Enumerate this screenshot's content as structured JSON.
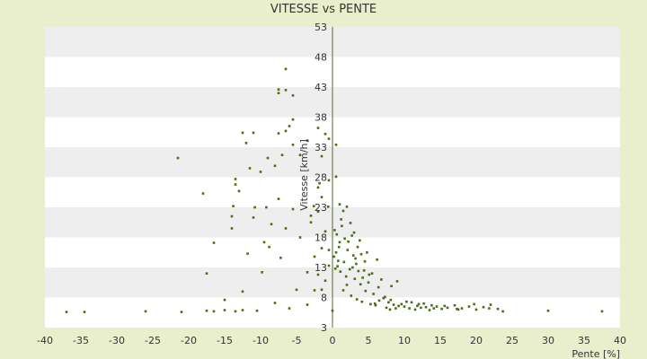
{
  "chart_data": {
    "type": "scatter",
    "title": "VITESSE vs PENTE",
    "xlabel": "Pente [%]",
    "ylabel": "Vitesse [km/h]",
    "xlim": [
      -40,
      40
    ],
    "ylim": [
      3,
      53
    ],
    "xticks": [
      -40,
      -35,
      -30,
      -25,
      -20,
      -15,
      -10,
      -5,
      0,
      5,
      10,
      15,
      20,
      25,
      30,
      35,
      40
    ],
    "yticks": [
      3,
      8,
      13,
      18,
      23,
      28,
      33,
      38,
      43,
      48,
      53
    ],
    "grid": "horizontal bands",
    "legend": "none",
    "colors": {
      "page_background": "#e9efcc",
      "band_white": "#ffffff",
      "band_grey": "#eeeeee",
      "marker": "#4d6b12",
      "axis": "#556b2f"
    },
    "points": [
      [
        -37,
        5.6
      ],
      [
        -34.5,
        5.6
      ],
      [
        -26,
        5.7
      ],
      [
        -21,
        5.6
      ],
      [
        -17.5,
        5.8
      ],
      [
        -16.5,
        5.7
      ],
      [
        -15,
        5.9
      ],
      [
        -13.5,
        5.7
      ],
      [
        -12.5,
        5.9
      ],
      [
        -10.5,
        5.8
      ],
      [
        -6,
        6.2
      ],
      [
        -3.5,
        6.8
      ],
      [
        -15,
        7.6
      ],
      [
        -12.5,
        9.0
      ],
      [
        -8,
        7.1
      ],
      [
        -5,
        9.3
      ],
      [
        -2.5,
        9.2
      ],
      [
        -1.5,
        9.3
      ],
      [
        -16.5,
        17.1
      ],
      [
        -14,
        19.5
      ],
      [
        -11,
        21.3
      ],
      [
        -9.5,
        17.2
      ],
      [
        -8.5,
        20.2
      ],
      [
        -6.5,
        19.5
      ],
      [
        -7.5,
        24.4
      ],
      [
        -5.5,
        22.7
      ],
      [
        -3,
        20.5
      ],
      [
        -4.5,
        18.0
      ],
      [
        -21.5,
        31.2
      ],
      [
        -18,
        25.3
      ],
      [
        -13,
        25.7
      ],
      [
        -13.5,
        26.8
      ],
      [
        -12,
        33.7
      ],
      [
        -13.5,
        27.7
      ],
      [
        -11.5,
        29.5
      ],
      [
        -10,
        28.9
      ],
      [
        -9,
        31.2
      ],
      [
        -8,
        29.9
      ],
      [
        -7,
        31.7
      ],
      [
        -6.5,
        35.7
      ],
      [
        -5.5,
        33.4
      ],
      [
        -4.5,
        31.7
      ],
      [
        -3.5,
        34.1
      ],
      [
        -12.5,
        35.4
      ],
      [
        -11,
        35.4
      ],
      [
        -7.5,
        35.3
      ],
      [
        -6,
        36.5
      ],
      [
        -5.5,
        37.6
      ],
      [
        -7.5,
        42.6
      ],
      [
        -7.5,
        42.0
      ],
      [
        -6.5,
        42.5
      ],
      [
        -5.5,
        41.6
      ],
      [
        -6.5,
        46.0
      ],
      [
        -2,
        36.2
      ],
      [
        -1,
        35.2
      ],
      [
        -1.5,
        31.5
      ],
      [
        -0.5,
        34.4
      ],
      [
        0.5,
        33.4
      ],
      [
        -1.5,
        24.7
      ],
      [
        -2,
        26.3
      ],
      [
        -0.5,
        27.5
      ],
      [
        0.5,
        28.1
      ],
      [
        -2,
        22.3
      ],
      [
        -3,
        21.6
      ],
      [
        -1,
        19.0
      ],
      [
        -1.5,
        16.2
      ],
      [
        -0.5,
        15.9
      ],
      [
        -2.5,
        14.8
      ],
      [
        -3.5,
        12.2
      ],
      [
        -2,
        11.8
      ],
      [
        -1,
        10.8
      ],
      [
        -0.5,
        13.3
      ],
      [
        -14,
        21.5
      ],
      [
        -13.8,
        23.2
      ],
      [
        -10.8,
        23.0
      ],
      [
        -9.2,
        23.0
      ],
      [
        -11.8,
        15.3
      ],
      [
        -9.8,
        12.2
      ],
      [
        -8.8,
        16.4
      ],
      [
        -7.2,
        14.6
      ],
      [
        -17.5,
        12.0
      ],
      [
        -2.6,
        23.2
      ],
      [
        -1.8,
        27.0
      ],
      [
        -0.6,
        23.1
      ],
      [
        0.0,
        5.8
      ],
      [
        0.2,
        14.8
      ],
      [
        0.5,
        15.5
      ],
      [
        0.8,
        14.1
      ],
      [
        1.0,
        17.2
      ],
      [
        0.6,
        18.5
      ],
      [
        0.3,
        19.2
      ],
      [
        1.2,
        21.0
      ],
      [
        1.5,
        22.4
      ],
      [
        2.0,
        23.1
      ],
      [
        1.0,
        23.5
      ],
      [
        2.5,
        20.4
      ],
      [
        3.0,
        18.8
      ],
      [
        2.2,
        17.3
      ],
      [
        3.5,
        16.4
      ],
      [
        4.0,
        15.2
      ],
      [
        3.2,
        14.5
      ],
      [
        4.5,
        14.0
      ],
      [
        2.8,
        13.0
      ],
      [
        3.6,
        12.4
      ],
      [
        4.2,
        11.3
      ],
      [
        5.0,
        10.5
      ],
      [
        2.0,
        10.1
      ],
      [
        1.5,
        9.2
      ],
      [
        2.6,
        8.3
      ],
      [
        3.4,
        7.7
      ],
      [
        4.1,
        7.3
      ],
      [
        5.3,
        6.9
      ],
      [
        6.0,
        6.7
      ],
      [
        6.5,
        7.5
      ],
      [
        5.7,
        8.6
      ],
      [
        7.1,
        7.9
      ],
      [
        7.8,
        7.2
      ],
      [
        8.5,
        6.8
      ],
      [
        9.2,
        6.6
      ],
      [
        10.0,
        6.5
      ],
      [
        10.7,
        6.2
      ],
      [
        11.5,
        6.0
      ],
      [
        12.3,
        6.3
      ],
      [
        13.0,
        6.4
      ],
      [
        13.8,
        6.7
      ],
      [
        14.5,
        6.5
      ],
      [
        15.2,
        6.1
      ],
      [
        16.0,
        6.3
      ],
      [
        17.0,
        6.7
      ],
      [
        18.0,
        6.2
      ],
      [
        19.0,
        6.5
      ],
      [
        20.0,
        6.0
      ],
      [
        21.0,
        6.4
      ],
      [
        22.0,
        6.8
      ],
      [
        23.0,
        6.1
      ],
      [
        17.5,
        6.0
      ],
      [
        19.7,
        6.9
      ],
      [
        21.8,
        6.2
      ],
      [
        9.0,
        10.7
      ],
      [
        8.2,
        9.9
      ],
      [
        6.8,
        11.0
      ],
      [
        5.5,
        12.0
      ],
      [
        6.2,
        14.3
      ],
      [
        4.8,
        15.5
      ],
      [
        3.8,
        17.5
      ],
      [
        2.7,
        18.3
      ],
      [
        1.7,
        17.8
      ],
      [
        1.3,
        19.9
      ],
      [
        0.9,
        16.4
      ],
      [
        0.4,
        12.8
      ],
      [
        1.1,
        12.3
      ],
      [
        1.9,
        11.5
      ],
      [
        2.4,
        12.7
      ],
      [
        3.1,
        11.1
      ],
      [
        3.9,
        10.2
      ],
      [
        4.6,
        9.1
      ],
      [
        5.9,
        7.0
      ],
      [
        7.5,
        6.3
      ],
      [
        8.8,
        6.2
      ],
      [
        11.0,
        7.2
      ],
      [
        12.0,
        6.9
      ],
      [
        13.5,
        5.9
      ],
      [
        2.1,
        15.9
      ],
      [
        2.9,
        15.0
      ],
      [
        3.3,
        13.6
      ],
      [
        1.6,
        13.9
      ],
      [
        0.7,
        13.2
      ],
      [
        4.4,
        12.5
      ],
      [
        5.1,
        11.8
      ],
      [
        6.4,
        9.7
      ],
      [
        7.3,
        8.1
      ],
      [
        8.1,
        7.6
      ],
      [
        9.6,
        6.9
      ],
      [
        10.3,
        7.3
      ],
      [
        11.8,
        6.6
      ],
      [
        12.7,
        7.0
      ],
      [
        14.1,
        6.2
      ],
      [
        15.6,
        6.6
      ],
      [
        8.0,
        6.0
      ],
      [
        17.3,
        6.1
      ],
      [
        23.7,
        5.7
      ],
      [
        30.0,
        5.8
      ],
      [
        37.5,
        5.7
      ]
    ]
  }
}
